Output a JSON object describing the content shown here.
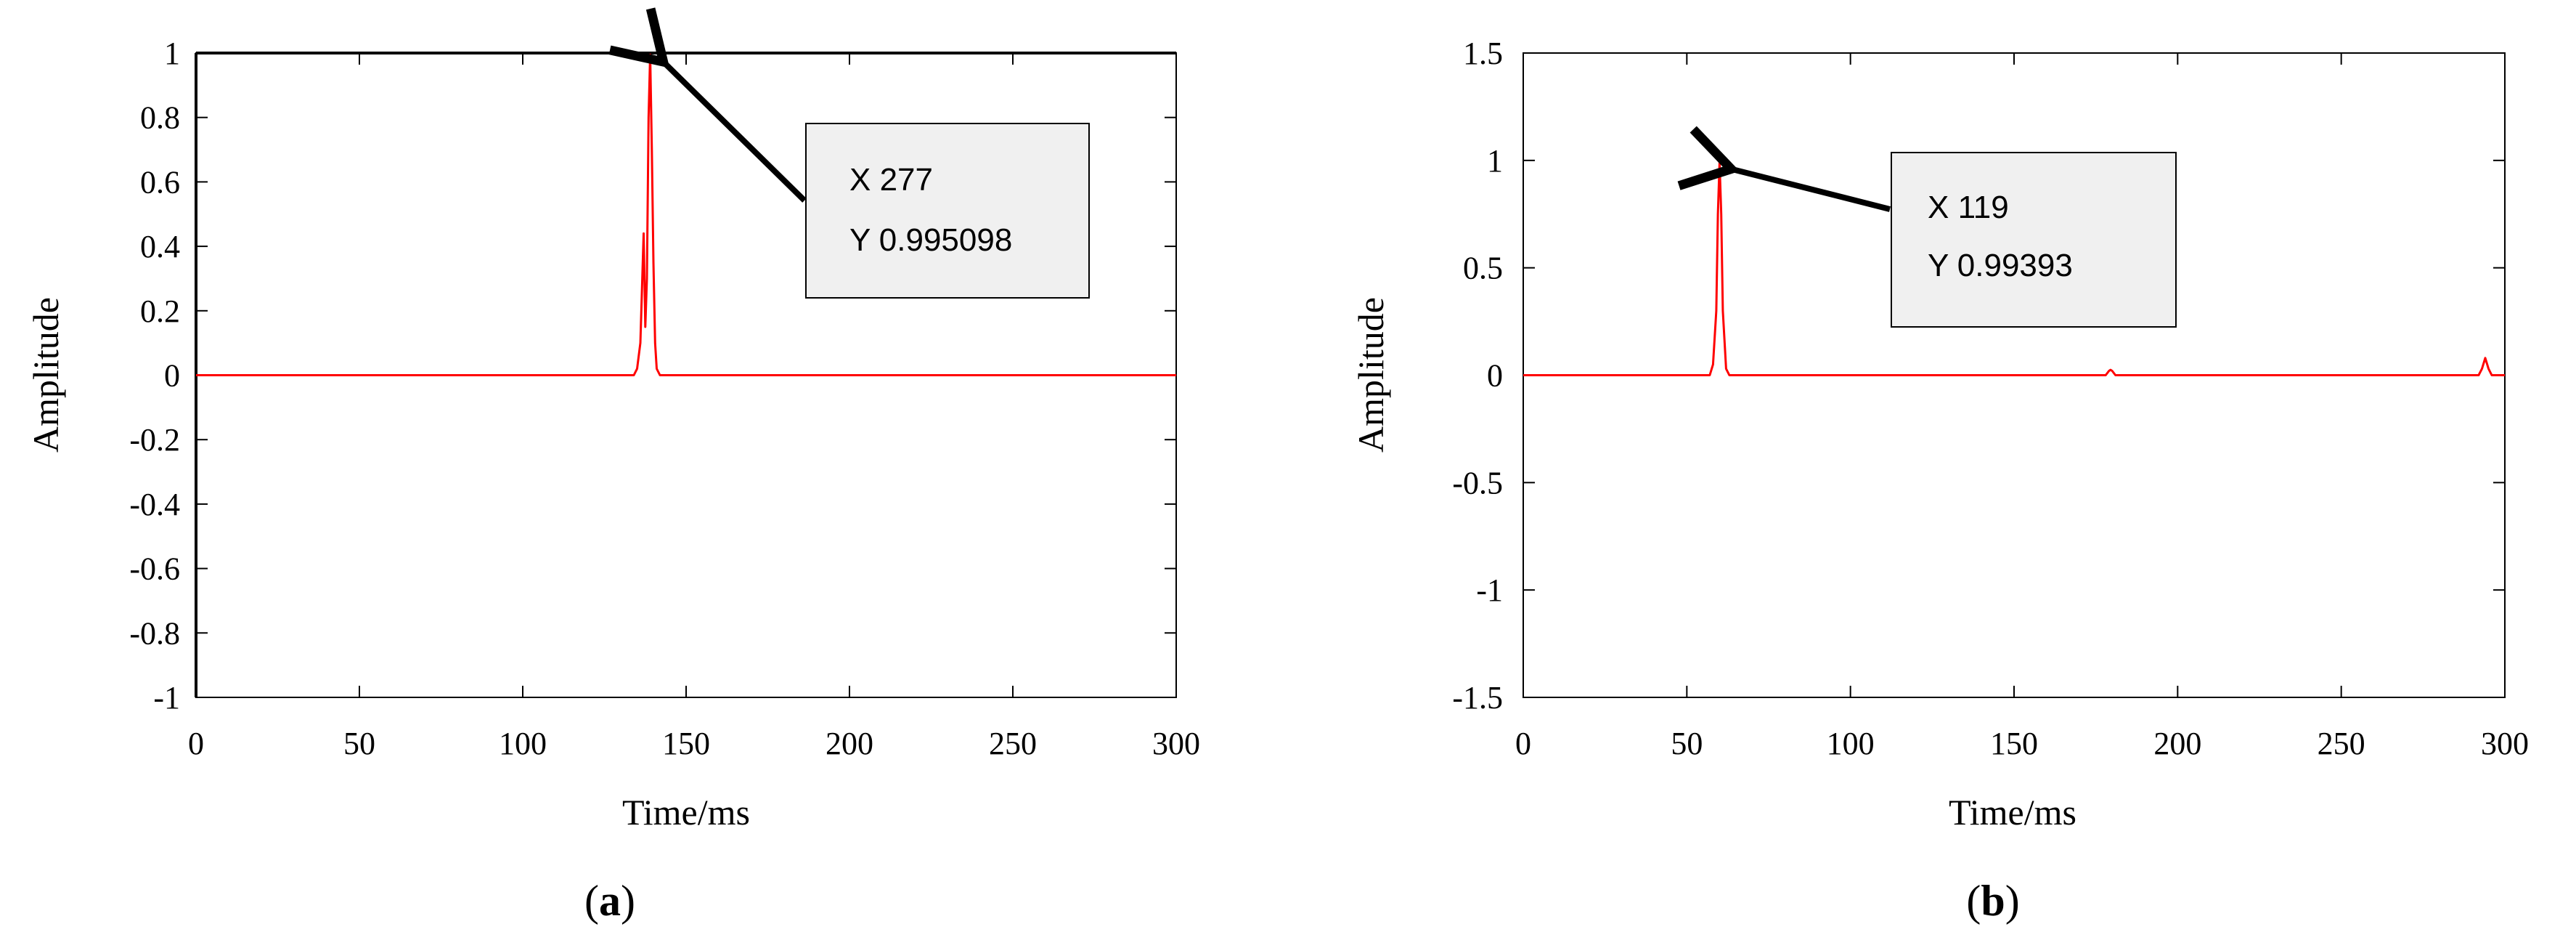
{
  "chart_data": [
    {
      "type": "line",
      "panel_label": "a",
      "xlabel": "Time/ms",
      "ylabel": "Amplitude",
      "xlim": [
        0,
        300
      ],
      "ylim": [
        -1,
        1
      ],
      "x_ticks": [
        "0",
        "50",
        "100",
        "150",
        "200",
        "250",
        "300"
      ],
      "y_ticks": [
        "1",
        "0.8",
        "0.6",
        "0.4",
        "0.2",
        "0",
        "-0.2",
        "-0.4",
        "-0.6",
        "-0.8",
        "-1"
      ],
      "grid": false,
      "color": "#ff0000",
      "series": [
        {
          "x": [
            0,
            134,
            135,
            136,
            137,
            137.5,
            138,
            138.5,
            139,
            139.5,
            140,
            140.5,
            141,
            142,
            143,
            300
          ],
          "y": [
            0,
            0,
            0.02,
            0.1,
            0.44,
            0.15,
            0.3,
            0.8,
            0.995,
            0.7,
            0.35,
            0.1,
            0.02,
            0,
            0,
            0
          ]
        }
      ],
      "annotation": {
        "x": 139.5,
        "y": 0.995,
        "lines": [
          "X 277",
          "Y 0.995098"
        ]
      }
    },
    {
      "type": "line",
      "panel_label": "b",
      "xlabel": "Time/ms",
      "ylabel": "Amplitude",
      "xlim": [
        0,
        300
      ],
      "ylim": [
        -1.5,
        1.5
      ],
      "x_ticks": [
        "0",
        "50",
        "100",
        "150",
        "200",
        "250",
        "300"
      ],
      "y_ticks": [
        "1.5",
        "1",
        "0.5",
        "0",
        "-0.5",
        "-1",
        "-1.5"
      ],
      "grid": false,
      "color": "#ff0000",
      "series": [
        {
          "x": [
            0,
            57,
            58,
            59,
            59.5,
            60,
            60.5,
            61,
            62,
            63,
            178,
            179,
            179.5,
            180,
            181,
            292,
            293,
            294,
            295,
            296,
            300
          ],
          "y": [
            0,
            0,
            0.05,
            0.3,
            0.75,
            0.99,
            0.75,
            0.3,
            0.03,
            0,
            0,
            0.02,
            0.025,
            0.02,
            0,
            0,
            0.03,
            0.08,
            0.03,
            0,
            0
          ]
        }
      ],
      "annotation": {
        "x": 60,
        "y": 0.994,
        "lines": [
          "X 119",
          "Y 0.99393"
        ]
      }
    }
  ],
  "captions": [
    {
      "open": "(",
      "letter": "a",
      "close": ")"
    },
    {
      "open": "(",
      "letter": "b",
      "close": ")"
    }
  ]
}
